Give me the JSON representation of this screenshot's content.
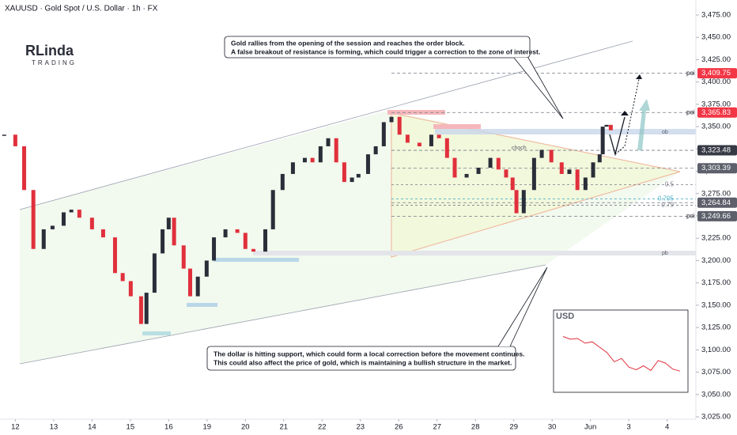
{
  "header": {
    "title": "XAUUSD · Gold Spot / U.S. Dollar · 1h · FX"
  },
  "logo": {
    "name": "RLinda",
    "sub": "TRADING"
  },
  "annotations": {
    "top": [
      "Gold rallies from the opening of the session and reaches the order block.",
      "A false breakout of resistance is forming, which could trigger a correction to the zone of interest."
    ],
    "bottom": [
      "The dollar is hitting support, which could form a local correction before the movement continues.",
      "This could also affect the price of gold, which is maintaining a bullish structure in the market."
    ]
  },
  "zone_labels": {
    "ob": "ob",
    "choch": "choch",
    "pb": "pb"
  },
  "chart_data": {
    "type": "candlestick",
    "up_color": "#2a2e39",
    "down_color": "#e0303c",
    "x": [
      -0.29,
      0,
      0.23,
      0.47,
      0.74,
      0.97,
      1.26,
      1.46,
      1.67,
      2.0,
      2.29,
      2.6,
      2.8,
      3.01,
      3.28,
      3.42,
      3.63,
      3.84,
      4.0,
      4.14,
      4.39,
      4.56,
      4.76,
      4.99,
      5.18,
      5.48,
      5.79,
      6.0,
      6.21,
      6.52,
      6.72,
      6.97,
      7.24,
      7.55,
      7.75,
      7.96,
      8.16,
      8.37,
      8.58,
      8.78,
      8.95,
      9.2,
      9.4,
      9.61,
      9.81,
      10.02,
      10.23,
      10.54,
      10.85,
      11.05,
      11.26,
      11.46,
      11.77,
      12.08,
      12.39,
      12.6,
      12.8,
      12.97,
      13.07,
      13.26,
      13.53,
      13.73,
      13.98,
      14.25,
      14.45,
      14.66,
      14.87,
      15.07,
      15.24,
      15.32,
      15.42,
      15.53
    ],
    "values": [
      3341,
      3328,
      3279,
      3213,
      3235,
      3239,
      3254,
      3257,
      3248,
      3235,
      3226,
      3186,
      3177,
      3160,
      3129,
      3164,
      3208,
      3235,
      3248,
      3217,
      3191,
      3160,
      3182,
      3200,
      3226,
      3235,
      3231,
      3213,
      3210,
      3235,
      3279,
      3297,
      3310,
      3315,
      3310,
      3328,
      3337,
      3310,
      3288,
      3293,
      3297,
      3319,
      3328,
      3355,
      3361,
      3341,
      3332,
      3328,
      3341,
      3337,
      3315,
      3293,
      3297,
      3304,
      3315,
      3302,
      3293,
      3279,
      3253,
      3279,
      3315,
      3324,
      3310,
      3297,
      3302,
      3279,
      3293,
      3310,
      3319,
      3350,
      3352,
      3346
    ],
    "xlim": [
      -0.4,
      17.75
    ],
    "xticks": [
      {
        "value": 0,
        "label": "12"
      },
      {
        "value": 1,
        "label": "13"
      },
      {
        "value": 2,
        "label": "14"
      },
      {
        "value": 3,
        "label": "15"
      },
      {
        "value": 4,
        "label": "16"
      },
      {
        "value": 5,
        "label": "19"
      },
      {
        "value": 6,
        "label": "20"
      },
      {
        "value": 7,
        "label": "21"
      },
      {
        "value": 8,
        "label": "22"
      },
      {
        "value": 9,
        "label": "23"
      },
      {
        "value": 10,
        "label": "26"
      },
      {
        "value": 11,
        "label": "27"
      },
      {
        "value": 12,
        "label": "28"
      },
      {
        "value": 13,
        "label": "29"
      },
      {
        "value": 14,
        "label": "30"
      },
      {
        "value": 15,
        "label": "Jun"
      },
      {
        "value": 16,
        "label": "3"
      },
      {
        "value": 17,
        "label": "4"
      }
    ],
    "ylim": [
      3025,
      3475
    ],
    "yticks": [
      {
        "value": 3475,
        "label": "3,475.00"
      },
      {
        "value": 3450,
        "label": "3,450.00"
      },
      {
        "value": 3425,
        "label": "3,425.00"
      },
      {
        "value": 3400,
        "label": "3,400.00"
      },
      {
        "value": 3375,
        "label": "3,375.00"
      },
      {
        "value": 3350,
        "label": "3,350.00"
      },
      {
        "value": 3325,
        "label": "3,325.00"
      },
      {
        "value": 3300,
        "label": "3,300.00"
      },
      {
        "value": 3275,
        "label": "3,275.00"
      },
      {
        "value": 3250,
        "label": "3,250.00"
      },
      {
        "value": 3225,
        "label": "3,225.00"
      },
      {
        "value": 3200,
        "label": "3,200.00"
      },
      {
        "value": 3175,
        "label": "3,175.00"
      },
      {
        "value": 3150,
        "label": "3,150.00"
      },
      {
        "value": 3125,
        "label": "3,125.00"
      },
      {
        "value": 3100,
        "label": "3,100.00"
      },
      {
        "value": 3075,
        "label": "3,075.00"
      },
      {
        "value": 3050,
        "label": "3,050.00"
      },
      {
        "value": 3025,
        "label": "3,025.00"
      }
    ],
    "levels": [
      {
        "value": 3409.75,
        "label": "3,409.75",
        "color": "#f23645",
        "tag": "poi"
      },
      {
        "value": 3365.83,
        "label": "3,365.83",
        "color": "#f23645",
        "tag": "poi"
      },
      {
        "value": 3323.48,
        "label": "3,323.48",
        "color": "#363a45"
      },
      {
        "value": 3303.39,
        "label": "3,303.39",
        "color": "#5d606b"
      },
      {
        "value": 3264.84,
        "label": "3,264.84",
        "color": "#5d606b"
      },
      {
        "value": 3249.66,
        "label": "3,249.66",
        "color": "#5d606b",
        "tag": "poi"
      }
    ],
    "fib": [
      {
        "value": 3285,
        "label": "0.5",
        "color": "#787b86"
      },
      {
        "value": 3269,
        "label": "0.705",
        "color": "#4fb0c6"
      },
      {
        "value": 3262,
        "label": "0.79",
        "color": "#787b86"
      }
    ]
  },
  "inset": {
    "title": "USD",
    "values": [
      104.2,
      103.8,
      103.9,
      103.2,
      103.4,
      102.6,
      101.8,
      100.4,
      100.9,
      99.6,
      99.2,
      99.8,
      99.1,
      100.6,
      100.2,
      99.3,
      99.0
    ],
    "ylim": [
      97,
      107
    ]
  }
}
